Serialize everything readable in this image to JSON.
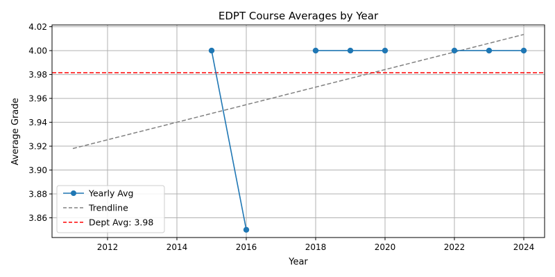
{
  "chart_data": {
    "type": "line",
    "title": "EDPT Course Averages by Year",
    "xlabel": "Year",
    "ylabel": "Average Grade",
    "xlim": [
      2010.4,
      2024.6
    ],
    "ylim": [
      3.8435,
      4.0215
    ],
    "xticks": [
      2012,
      2014,
      2016,
      2018,
      2020,
      2022,
      2024
    ],
    "yticks": [
      3.86,
      3.88,
      3.9,
      3.92,
      3.94,
      3.96,
      3.98,
      4.0,
      4.02
    ],
    "grid": true,
    "legend_position": "lower-left",
    "series": [
      {
        "name": "Yearly Avg",
        "style": "solid-with-markers",
        "color": "#1f77b4",
        "segments": [
          [
            {
              "x": 2015,
              "y": 4.0
            },
            {
              "x": 2016,
              "y": 3.85
            }
          ],
          [
            {
              "x": 2018,
              "y": 4.0
            },
            {
              "x": 2019,
              "y": 4.0
            },
            {
              "x": 2020,
              "y": 4.0
            }
          ],
          [
            {
              "x": 2022,
              "y": 4.0
            },
            {
              "x": 2023,
              "y": 4.0
            },
            {
              "x": 2024,
              "y": 4.0
            }
          ]
        ]
      },
      {
        "name": "Trendline",
        "style": "dashed",
        "color": "#808080",
        "points": [
          {
            "x": 2011,
            "y": 3.918
          },
          {
            "x": 2024,
            "y": 4.0135
          }
        ]
      },
      {
        "name": "Dept Avg: 3.98",
        "style": "dashed-horizontal",
        "color": "#ff0000",
        "y": 3.9815
      }
    ]
  }
}
